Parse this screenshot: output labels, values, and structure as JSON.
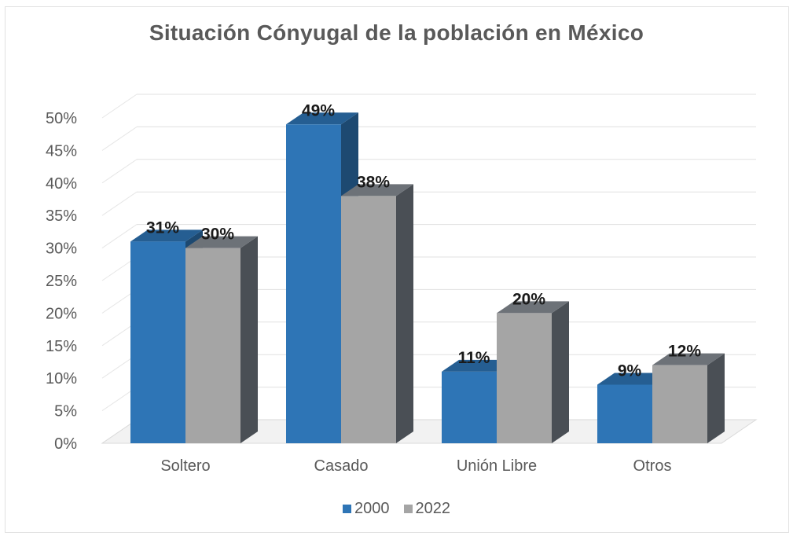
{
  "chart_data": {
    "type": "bar",
    "style": "3d-clustered-column",
    "title": "Situación Cónyugal de la población en México",
    "xlabel": "",
    "ylabel": "",
    "categories": [
      "Soltero",
      "Casado",
      "Unión Libre",
      "Otros"
    ],
    "series": [
      {
        "name": "2000",
        "color": "#2e75b6",
        "values": [
          31,
          49,
          11,
          9
        ],
        "labels": [
          "31%",
          "49%",
          "11%",
          "9%"
        ]
      },
      {
        "name": "2022",
        "color": "#a5a5a5",
        "values": [
          30,
          38,
          20,
          12
        ],
        "labels": [
          "30%",
          "38%",
          "20%",
          "12%"
        ]
      }
    ],
    "ylim": [
      0,
      50
    ],
    "yticks": [
      "0%",
      "5%",
      "10%",
      "15%",
      "20%",
      "25%",
      "30%",
      "35%",
      "40%",
      "45%",
      "50%"
    ],
    "grid": true,
    "legend_position": "bottom"
  }
}
